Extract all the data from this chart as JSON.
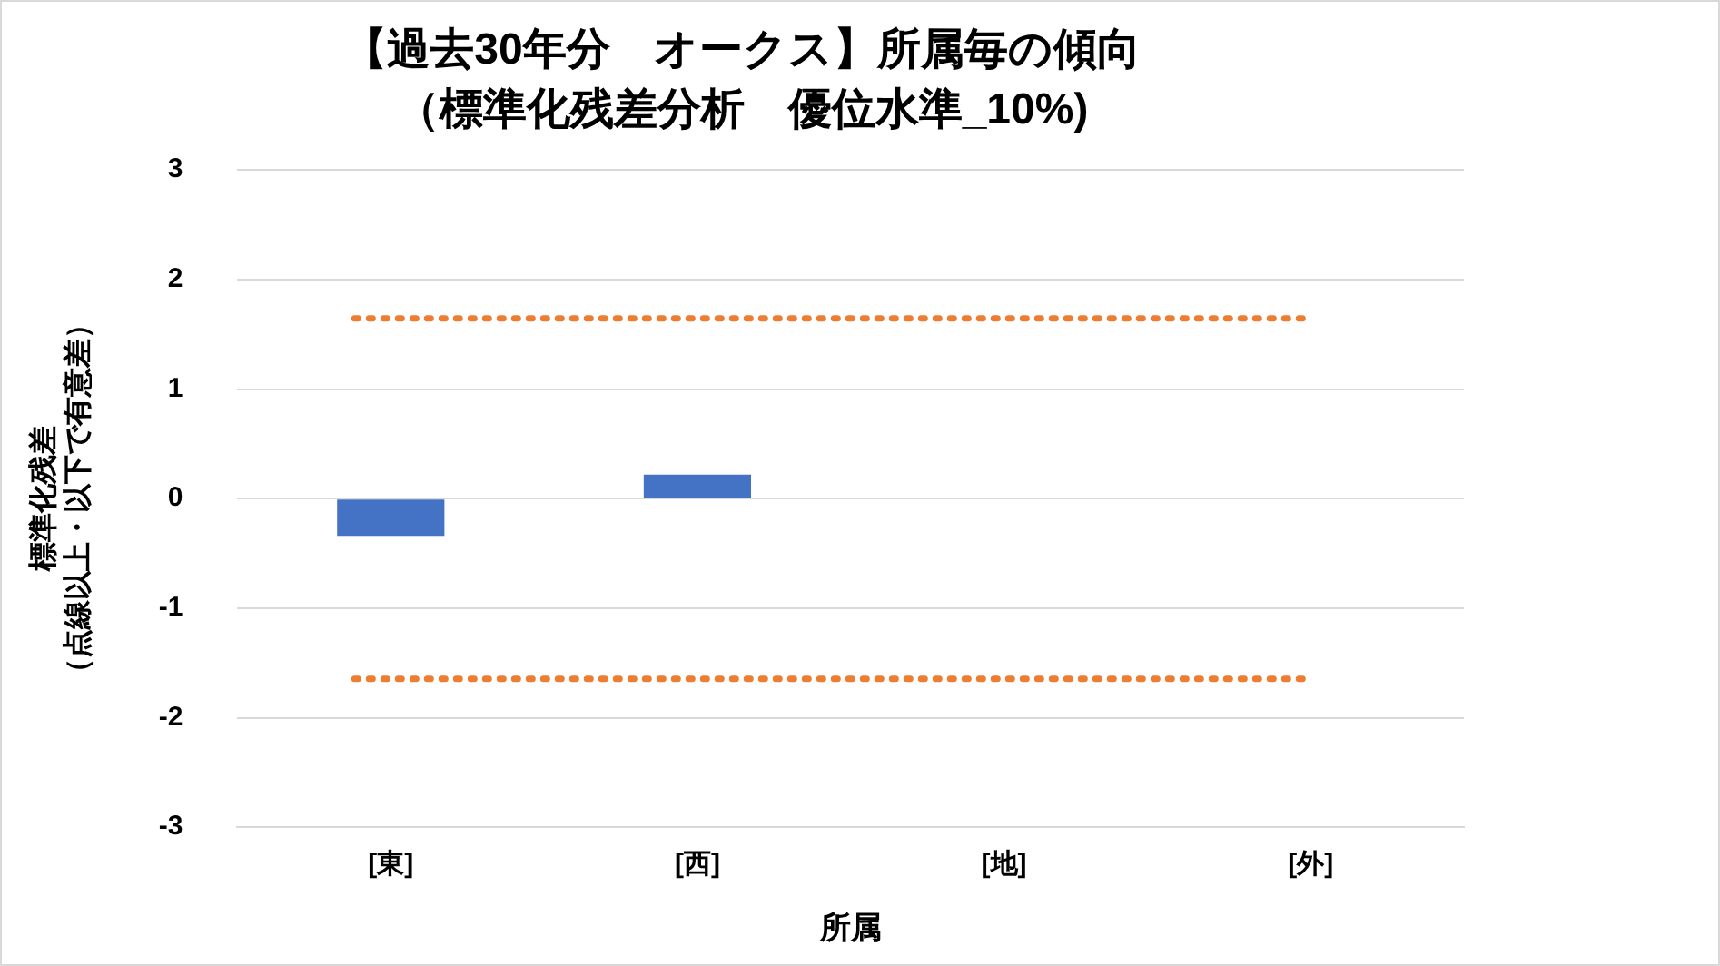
{
  "chart_data": {
    "type": "bar",
    "title": "【過去30年分　オークス】所属毎の傾向",
    "subtitle": "（標準化残差分析　優位水準_10%)",
    "xlabel": "所属",
    "ylabel": [
      "標準化残差",
      "（点線以上・以下で有意差）"
    ],
    "categories": [
      "[東]",
      "[西]",
      "[地]",
      "[外]"
    ],
    "values": [
      -0.34,
      0.22,
      null,
      null
    ],
    "color": "#4472c4",
    "ylim": [
      -3,
      3
    ],
    "yticks": [
      -3,
      -2,
      -1,
      0,
      1,
      2,
      3
    ],
    "grid": "y",
    "legend": false,
    "ref_lines": [
      {
        "axis": "y",
        "value": 1.645,
        "color": "#ed7d31",
        "line_style": "dotted"
      },
      {
        "axis": "y",
        "value": -1.645,
        "color": "#ed7d31",
        "line_style": "dotted"
      }
    ]
  }
}
